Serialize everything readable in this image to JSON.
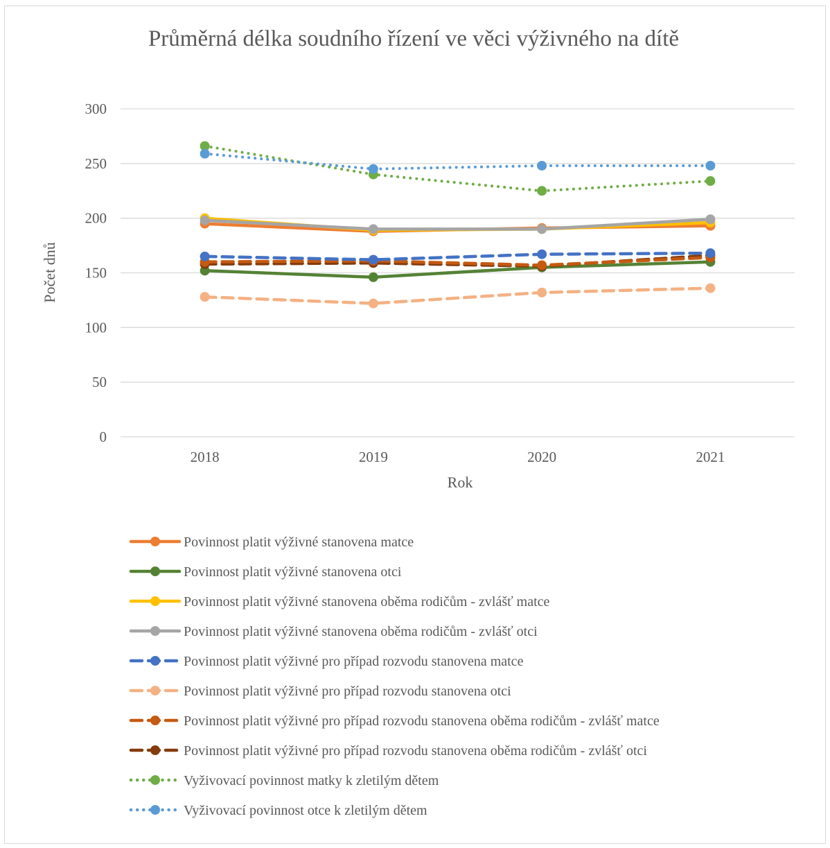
{
  "chart_data": {
    "type": "line",
    "title": "Průměrná délka soudního řízení ve věci výživného na dítě",
    "xlabel": "Rok",
    "ylabel": "Počet dnů",
    "ylim": [
      0,
      300
    ],
    "yticks": [
      0,
      50,
      100,
      150,
      200,
      250,
      300
    ],
    "grid": true,
    "legend_position": "bottom",
    "categories": [
      "2018",
      "2019",
      "2020",
      "2021"
    ],
    "series": [
      {
        "name": "Povinnost platit výživné stanovena matce",
        "values": [
          195,
          188,
          191,
          193
        ],
        "color": "#ed7d31",
        "dash": "solid"
      },
      {
        "name": "Povinnost platit výživné stanovena otci",
        "values": [
          152,
          146,
          155,
          160
        ],
        "color": "#548235",
        "dash": "solid"
      },
      {
        "name": "Povinnost platit výživné stanovena oběma rodičům - zvlášť matce",
        "values": [
          200,
          189,
          190,
          196
        ],
        "color": "#ffc000",
        "dash": "solid"
      },
      {
        "name": "Povinnost platit výživné stanovena oběma rodičům - zvlášť otci",
        "values": [
          198,
          190,
          190,
          199
        ],
        "color": "#a5a5a5",
        "dash": "solid"
      },
      {
        "name": "Povinnost platit výživné pro případ rozvodu stanovena matce",
        "values": [
          165,
          162,
          167,
          168
        ],
        "color": "#4472c4",
        "dash": "dash"
      },
      {
        "name": "Povinnost platit výživné pro případ rozvodu stanovena otci",
        "values": [
          128,
          122,
          132,
          136
        ],
        "color": "#f4b183",
        "dash": "dash"
      },
      {
        "name": "Povinnost platit výživné pro případ rozvodu stanovena oběma rodičům - zvlášť matce",
        "values": [
          160,
          161,
          157,
          164
        ],
        "color": "#c55a11",
        "dash": "dash"
      },
      {
        "name": "Povinnost platit výživné pro případ rozvodu stanovena oběma rodičům - zvlášť otci",
        "values": [
          158,
          159,
          156,
          166
        ],
        "color": "#843c0c",
        "dash": "dash"
      },
      {
        "name": "Vyživovací povinnost matky k zletilým dětem",
        "values": [
          266,
          240,
          225,
          234
        ],
        "color": "#70ad47",
        "dash": "dot"
      },
      {
        "name": "Vyživovací povinnost otce k zletilým dětem",
        "values": [
          259,
          245,
          248,
          248
        ],
        "color": "#5b9bd5",
        "dash": "dot"
      }
    ]
  }
}
